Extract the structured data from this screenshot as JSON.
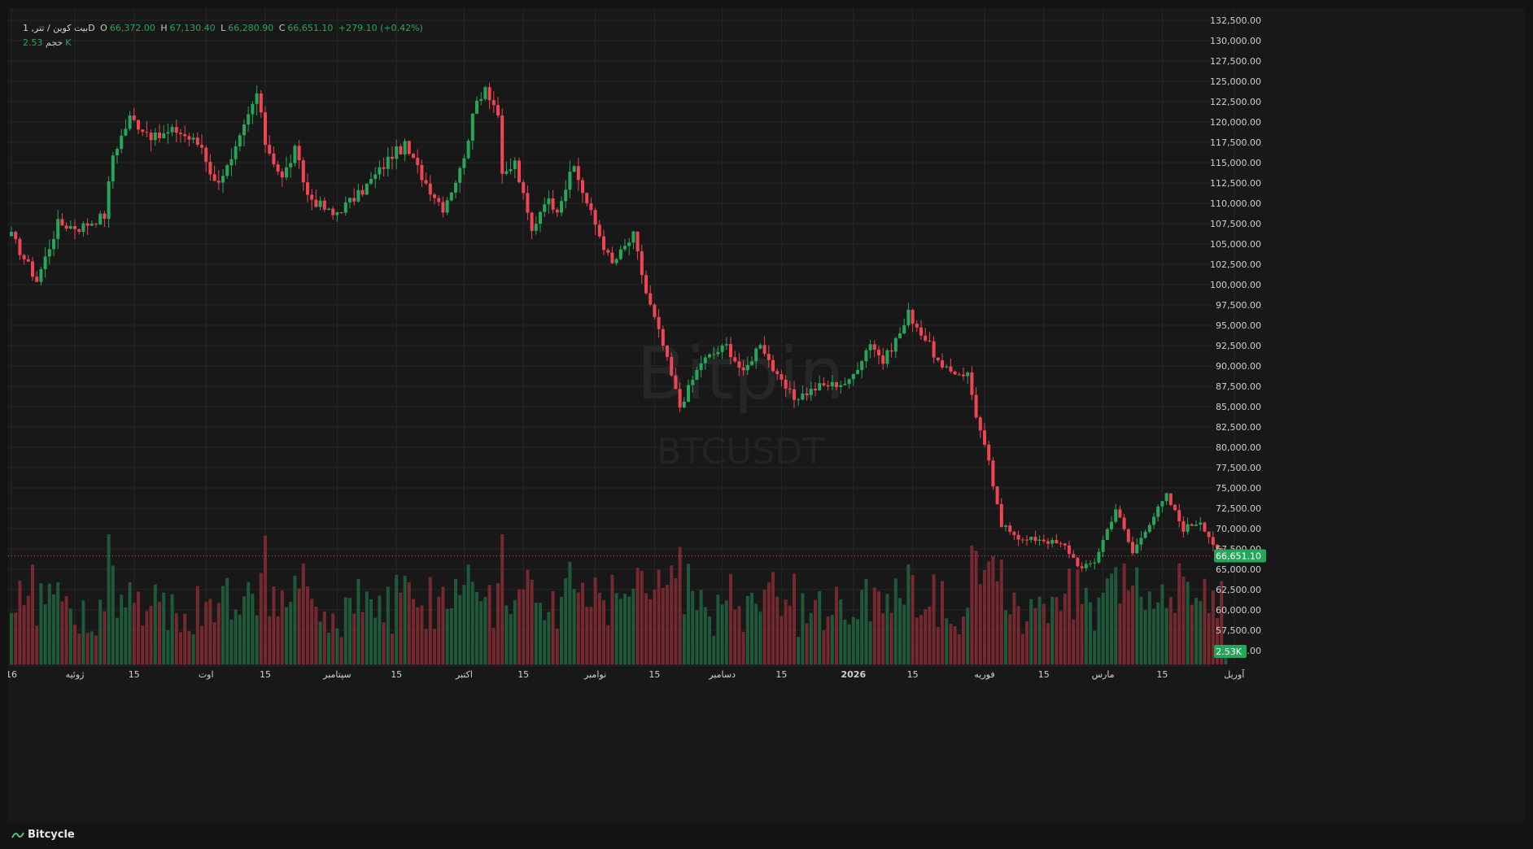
{
  "legend": {
    "symbol": "بیت کوین / تتر, 1D",
    "open_label": "O",
    "open": "66,372.00",
    "high_label": "H",
    "high": "67,130.40",
    "low_label": "L",
    "low": "66,280.90",
    "close_label": "C",
    "close": "66,651.10",
    "change": "+279.10 (+0.42%)",
    "volume_label": "حجم",
    "volume": "2.53K"
  },
  "watermark": {
    "brand": "Bitpin",
    "ticker": "BTCUSDT"
  },
  "footer": {
    "brand": "Bitcycle"
  },
  "colors": {
    "up": "#26a65b",
    "down": "#ef4452",
    "background": "#181818",
    "grid": "#262626",
    "axis_text": "#d0d0d0"
  },
  "chart_data": {
    "type": "candlestick",
    "instrument": "BTCUSDT",
    "timeframe": "1D",
    "price_axis": {
      "min": 57500,
      "max": 132500,
      "step": 2500,
      "ticks": [
        "132,500.00",
        "130,000.00",
        "127,500.00",
        "125,000.00",
        "122,500.00",
        "120,000.00",
        "117,500.00",
        "115,000.00",
        "112,500.00",
        "110,000.00",
        "107,500.00",
        "105,000.00",
        "102,500.00",
        "100,000.00",
        "97,500.00",
        "95,000.00",
        "92,500.00",
        "90,000.00",
        "87,500.00",
        "85,000.00",
        "82,500.00",
        "80,000.00",
        "77,500.00",
        "75,000.00",
        "72,500.00",
        "70,000.00",
        "67,500.00",
        "65,000.00",
        "62,500.00",
        "60,000.00",
        "57,500.00",
        "55,000.00"
      ],
      "last_price": 66651.1,
      "last_price_label": "66,651.10",
      "last_volume": 2.53,
      "last_volume_label": "2.53K"
    },
    "time_axis": {
      "labels": [
        "16",
        "ژوئیه",
        "15",
        "اوت",
        "15",
        "سپتامبر",
        "15",
        "اکتبر",
        "15",
        "نوامبر",
        "15",
        "دسامبر",
        "15",
        "2026",
        "15",
        "فوریه",
        "15",
        "مارس",
        "15",
        "آوریل"
      ]
    },
    "keyframes": [
      [
        "2025-06-16",
        106000
      ],
      [
        "2025-06-22",
        100500
      ],
      [
        "2025-06-27",
        107500
      ],
      [
        "2025-07-02",
        107000
      ],
      [
        "2025-07-08",
        108500
      ],
      [
        "2025-07-10",
        116000
      ],
      [
        "2025-07-14",
        120500
      ],
      [
        "2025-07-20",
        118000
      ],
      [
        "2025-07-25",
        119000
      ],
      [
        "2025-07-31",
        117000
      ],
      [
        "2025-08-03",
        112500
      ],
      [
        "2025-08-07",
        115000
      ],
      [
        "2025-08-13",
        123500
      ],
      [
        "2025-08-15",
        117500
      ],
      [
        "2025-08-19",
        113000
      ],
      [
        "2025-08-22",
        116500
      ],
      [
        "2025-08-25",
        111000
      ],
      [
        "2025-08-31",
        108500
      ],
      [
        "2025-09-01",
        109000
      ],
      [
        "2025-09-06",
        111000
      ],
      [
        "2025-09-11",
        114000
      ],
      [
        "2025-09-14",
        116000
      ],
      [
        "2025-09-17",
        117000
      ],
      [
        "2025-09-22",
        112500
      ],
      [
        "2025-09-26",
        109500
      ],
      [
        "2025-09-30",
        114000
      ],
      [
        "2025-10-04",
        122500
      ],
      [
        "2025-10-06",
        124500
      ],
      [
        "2025-10-09",
        121000
      ],
      [
        "2025-10-10",
        113000
      ],
      [
        "2025-10-13",
        115000
      ],
      [
        "2025-10-17",
        106500
      ],
      [
        "2025-10-20",
        110500
      ],
      [
        "2025-10-23",
        109500
      ],
      [
        "2025-10-27",
        114500
      ],
      [
        "2025-10-30",
        110000
      ],
      [
        "2025-11-04",
        103500
      ],
      [
        "2025-11-05",
        102500
      ],
      [
        "2025-11-10",
        106000
      ],
      [
        "2025-11-13",
        99000
      ],
      [
        "2025-11-17",
        92500
      ],
      [
        "2025-11-21",
        85000
      ],
      [
        "2025-11-26",
        90500
      ],
      [
        "2025-12-02",
        92500
      ],
      [
        "2025-12-06",
        89000
      ],
      [
        "2025-12-10",
        93000
      ],
      [
        "2025-12-14",
        88500
      ],
      [
        "2025-12-18",
        86000
      ],
      [
        "2025-12-24",
        87500
      ],
      [
        "2025-12-31",
        88000
      ],
      [
        "2026-01-05",
        93000
      ],
      [
        "2026-01-08",
        90500
      ],
      [
        "2026-01-13",
        95000
      ],
      [
        "2026-01-14",
        96500
      ],
      [
        "2026-01-19",
        92500
      ],
      [
        "2026-01-22",
        89500
      ],
      [
        "2026-01-28",
        89000
      ],
      [
        "2026-01-30",
        84000
      ],
      [
        "2026-02-02",
        78000
      ],
      [
        "2026-02-05",
        70000
      ],
      [
        "2026-02-06",
        70500
      ],
      [
        "2026-02-10",
        68500
      ],
      [
        "2026-02-14",
        68800
      ],
      [
        "2026-02-20",
        67800
      ],
      [
        "2026-02-24",
        65000
      ],
      [
        "2026-02-27",
        66000
      ],
      [
        "2026-03-04",
        72500
      ],
      [
        "2026-03-08",
        67000
      ],
      [
        "2026-03-11",
        70000
      ],
      [
        "2026-03-16",
        74000
      ],
      [
        "2026-03-20",
        70000
      ],
      [
        "2026-03-24",
        71000
      ],
      [
        "2026-03-29",
        66300
      ],
      [
        "2026-03-30",
        66651
      ]
    ],
    "volume_series": "volume panel with ~290 daily green/red bars (~0–40K range), peaks near 2025-10-10 and 2025-11-21"
  }
}
